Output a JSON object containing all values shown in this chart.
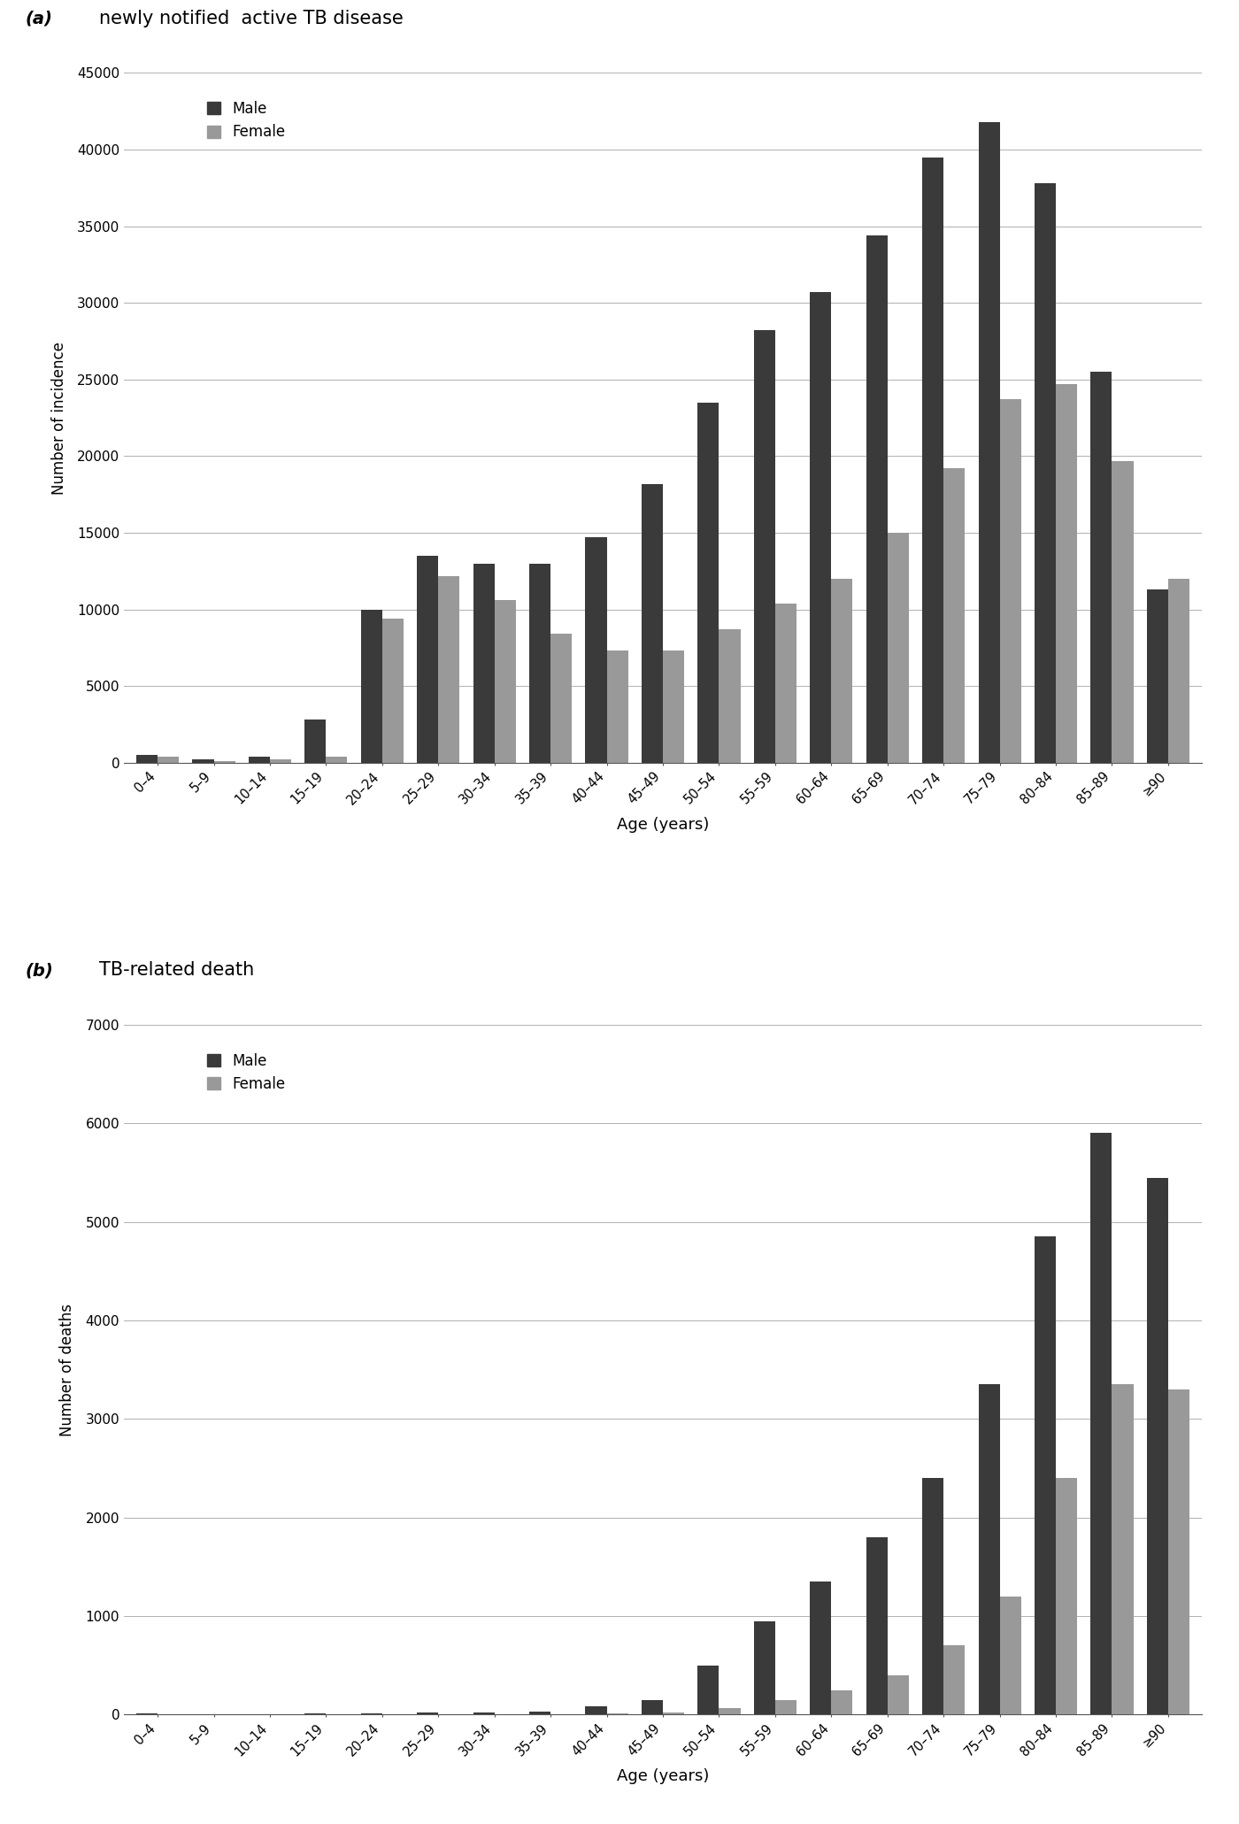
{
  "age_labels": [
    "0–4",
    "5–9",
    "10–14",
    "15–19",
    "20–24",
    "25–29",
    "30–34",
    "35–39",
    "40–44",
    "45–49",
    "50–54",
    "55–59",
    "60–64",
    "65–69",
    "70–74",
    "75–79",
    "80–84",
    "85–89",
    "≥90"
  ],
  "incidence_male": [
    500,
    200,
    400,
    2800,
    10000,
    13500,
    13000,
    13000,
    14700,
    18200,
    23500,
    28200,
    30700,
    34400,
    39500,
    41800,
    37800,
    25500,
    11300
  ],
  "incidence_female": [
    400,
    100,
    200,
    400,
    9400,
    12200,
    10600,
    8400,
    7300,
    7300,
    8700,
    10400,
    12000,
    15000,
    19200,
    23700,
    24700,
    19700,
    12000
  ],
  "death_male": [
    10,
    5,
    5,
    10,
    15,
    20,
    20,
    30,
    80,
    150,
    500,
    950,
    1350,
    1800,
    2400,
    3350,
    4850,
    5900,
    5450
  ],
  "death_female": [
    3,
    3,
    3,
    3,
    3,
    3,
    3,
    5,
    10,
    25,
    70,
    150,
    250,
    400,
    700,
    1200,
    2400,
    3350,
    3300
  ],
  "color_male": "#3a3a3a",
  "color_female": "#999999",
  "title_a": "newly notified  active TB disease",
  "title_b": "TB-related death",
  "label_a": "(a)",
  "label_b": "(b)",
  "ylabel_a": "Number of incidence",
  "ylabel_b": "Number of deaths",
  "xlabel": "Age (years)",
  "ylim_a": [
    0,
    45000
  ],
  "ylim_b": [
    0,
    7000
  ],
  "yticks_a": [
    0,
    5000,
    10000,
    15000,
    20000,
    25000,
    30000,
    35000,
    40000,
    45000
  ],
  "yticks_b": [
    0,
    1000,
    2000,
    3000,
    4000,
    5000,
    6000,
    7000
  ],
  "background_color": "#ffffff"
}
